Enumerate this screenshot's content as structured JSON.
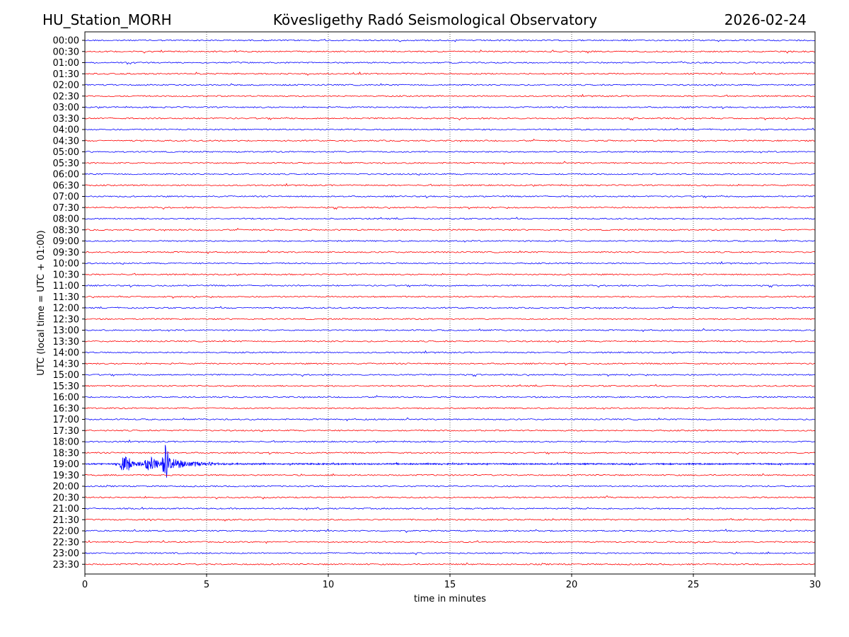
{
  "header": {
    "station": "HU_Station_MORH",
    "observatory": "Kövesligethy Radó Seismological Observatory",
    "date": "2026-02-24"
  },
  "chart_data": {
    "type": "line",
    "title": "Kövesligethy Radó Seismological Observatory",
    "xlabel": "time in minutes",
    "ylabel": "UTC (local time = UTC + 01:00)",
    "xlim": [
      0,
      30
    ],
    "xticks": [
      0,
      5,
      10,
      15,
      20,
      25,
      30
    ],
    "grid": "vertical dotted lines at x ticks",
    "trace_colors": [
      "#0000ff",
      "#ff0000"
    ],
    "rows": [
      "00:00",
      "00:30",
      "01:00",
      "01:30",
      "02:00",
      "02:30",
      "03:00",
      "03:30",
      "04:00",
      "04:30",
      "05:00",
      "05:30",
      "06:00",
      "06:30",
      "07:00",
      "07:30",
      "08:00",
      "08:30",
      "09:00",
      "09:30",
      "10:00",
      "10:30",
      "11:00",
      "11:30",
      "12:00",
      "12:30",
      "13:00",
      "13:30",
      "14:00",
      "14:30",
      "15:00",
      "15:30",
      "16:00",
      "16:30",
      "17:00",
      "17:30",
      "18:00",
      "18:30",
      "19:00",
      "19:30",
      "20:00",
      "20:30",
      "21:00",
      "21:30",
      "22:00",
      "22:30",
      "23:00",
      "23:30"
    ],
    "events": [
      {
        "row": "19:00",
        "start_min": 1.4,
        "end_min": 7.0,
        "peak_min": 3.3
      }
    ]
  }
}
